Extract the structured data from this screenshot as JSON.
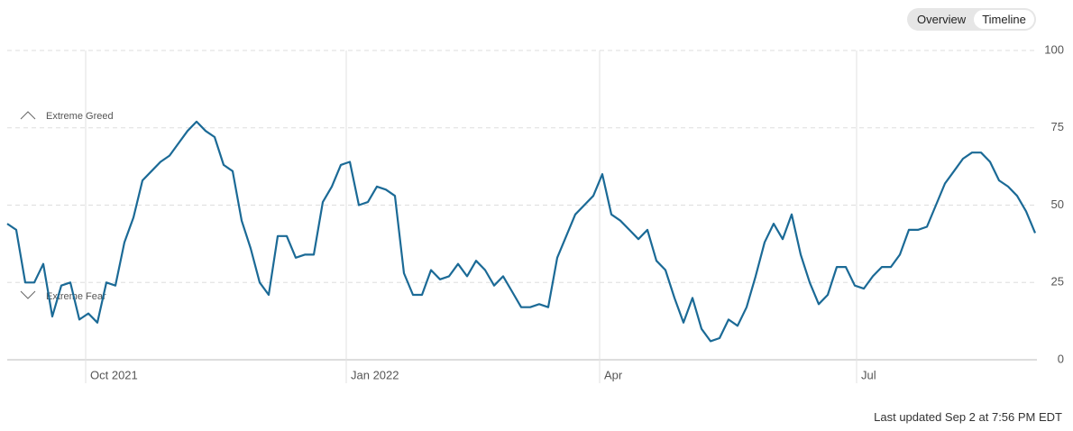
{
  "controls": {
    "buttons": [
      "Overview",
      "Timeline"
    ],
    "active": 1
  },
  "chart_data": {
    "type": "line",
    "color": "#1b6a96",
    "values": [
      44,
      42,
      25,
      25,
      31,
      14,
      24,
      25,
      13,
      15,
      12,
      25,
      24,
      38,
      46,
      58,
      61,
      64,
      66,
      70,
      74,
      77,
      74,
      72,
      63,
      61,
      45,
      36,
      25,
      21,
      40,
      40,
      33,
      34,
      34,
      51,
      56,
      63,
      64,
      50,
      51,
      56,
      55,
      53,
      28,
      21,
      21,
      29,
      26,
      27,
      31,
      27,
      32,
      29,
      24,
      27,
      22,
      17,
      17,
      18,
      17,
      33,
      40,
      47,
      50,
      53,
      60,
      47,
      45,
      42,
      39,
      42,
      32,
      29,
      20,
      12,
      20,
      10,
      6,
      7,
      13,
      11,
      17,
      27,
      38,
      44,
      39,
      47,
      34,
      25,
      18,
      21,
      30,
      30,
      24,
      23,
      27,
      30,
      30,
      34,
      42,
      42,
      43,
      50,
      57,
      61,
      65,
      67,
      67,
      64,
      58,
      56,
      53,
      48,
      41
    ],
    "xlim": [
      0,
      114
    ],
    "xticks": [
      {
        "value": 8.7,
        "label": "Oct 2021"
      },
      {
        "value": 37.6,
        "label": "Jan 2022"
      },
      {
        "value": 65.7,
        "label": "Apr"
      },
      {
        "value": 94.2,
        "label": "Jul"
      }
    ],
    "ylim": [
      0,
      100
    ],
    "yticks": [
      0,
      25,
      50,
      75,
      100
    ],
    "grid": true,
    "annotations": [
      "Extreme Greed",
      "Extreme Fear"
    ]
  },
  "footer": "Last updated Sep 2 at 7:56 PM EDT"
}
